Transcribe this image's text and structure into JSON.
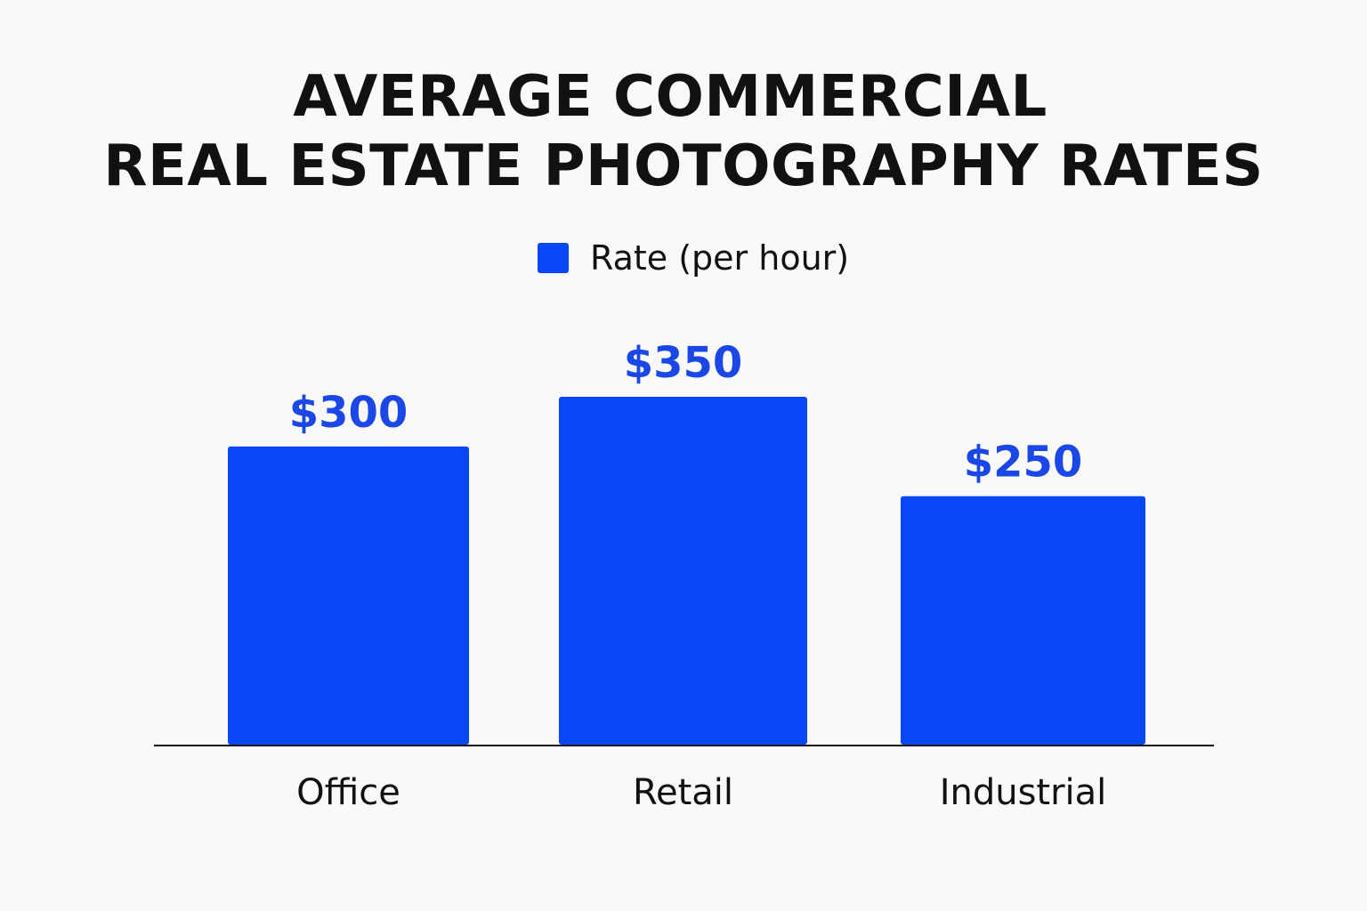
{
  "title": {
    "line1": "AVERAGE COMMERCIAL",
    "line2": "REAL ESTATE PHOTOGRAPHY RATES"
  },
  "legend": {
    "label": "Rate (per hour)",
    "color": "#0847f5"
  },
  "colors": {
    "bar": "#0847f5",
    "value_label": "#1b47e6",
    "axis": "#111111",
    "background": "#f9f9f9"
  },
  "chart_data": {
    "type": "bar",
    "title": "AVERAGE COMMERCIAL REAL ESTATE PHOTOGRAPHY RATES",
    "categories": [
      "Office",
      "Retail",
      "Industrial"
    ],
    "series": [
      {
        "name": "Rate (per hour)",
        "values": [
          300,
          350,
          250
        ],
        "labels": [
          "$300",
          "$350",
          "$250"
        ]
      }
    ],
    "xlabel": "",
    "ylabel": "",
    "ylim": [
      0,
      350
    ],
    "grid": false,
    "legend_position": "top-center"
  }
}
